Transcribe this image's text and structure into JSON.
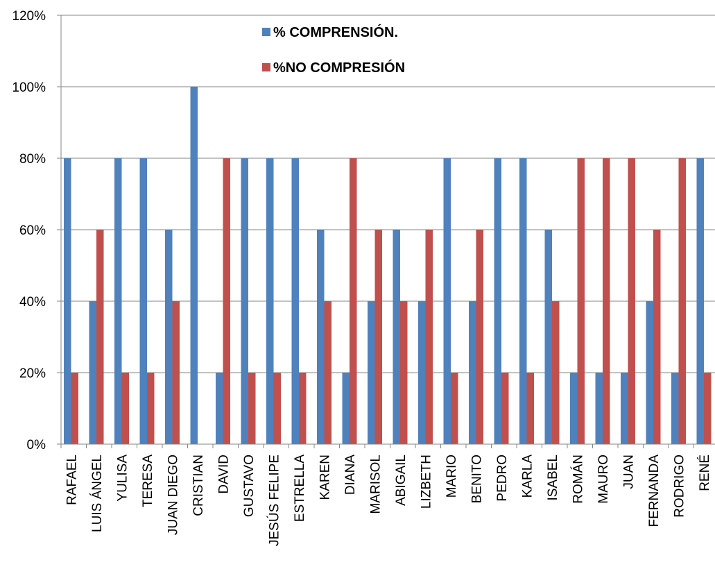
{
  "chart_data": {
    "type": "bar",
    "categories": [
      "RAFAEL",
      "LUIS ÁNGEL",
      "YULISA",
      "TERESA",
      "JUAN DIEGO",
      "CRISTIAN",
      "DAVID",
      "GUSTAVO",
      "JESÚS FELIPE",
      "ESTRELLA",
      "KAREN",
      "DIANA",
      "MARISOL",
      "ABIGAIL",
      "LIZBETH",
      "MARIO",
      "BENITO",
      "PEDRO",
      "KARLA",
      "ISABEL",
      "ROMÁN",
      "MAURO",
      "JUAN",
      "FERNANDA",
      "RODRIGO",
      "RENÉ"
    ],
    "series": [
      {
        "name": "% COMPRENSIÓN.",
        "color": "#4f81bd",
        "values": [
          80,
          40,
          80,
          80,
          60,
          100,
          20,
          80,
          80,
          80,
          60,
          20,
          40,
          60,
          40,
          80,
          40,
          80,
          80,
          60,
          20,
          20,
          20,
          40,
          20,
          80
        ]
      },
      {
        "name": "%NO COMPRESIÓN",
        "color": "#c0504d",
        "values": [
          20,
          60,
          20,
          20,
          40,
          0,
          80,
          20,
          20,
          20,
          40,
          80,
          60,
          40,
          60,
          20,
          60,
          20,
          20,
          40,
          80,
          80,
          80,
          60,
          80,
          20
        ]
      }
    ],
    "ylim": [
      0,
      120
    ],
    "yticks": [
      "0%",
      "20%",
      "40%",
      "60%",
      "80%",
      "100%",
      "120%"
    ],
    "grid": true,
    "legend_position": "top-left"
  }
}
